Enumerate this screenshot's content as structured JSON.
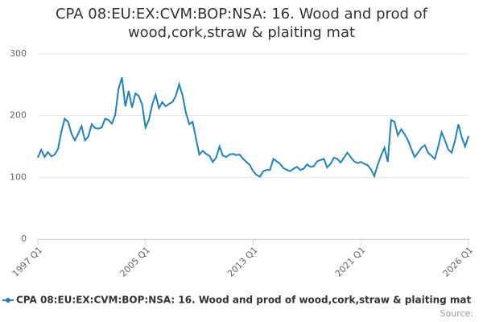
{
  "chart_data": {
    "type": "line",
    "title": "CPA 08:EU:EX:CVM:BOP:NSA: 16. Wood and prod of wood,cork,straw & plaiting mat",
    "source": "Source:",
    "categories": [
      "1997 Q1",
      null,
      null,
      null,
      null,
      null,
      null,
      null,
      null,
      null,
      null,
      null,
      null,
      null,
      null,
      null,
      null,
      null,
      null,
      null,
      null,
      null,
      null,
      null,
      null,
      null,
      null,
      null,
      null,
      null,
      null,
      null,
      "2005 Q1",
      null,
      null,
      null,
      null,
      null,
      null,
      null,
      null,
      null,
      null,
      null,
      null,
      null,
      null,
      null,
      null,
      null,
      null,
      null,
      null,
      null,
      null,
      null,
      null,
      null,
      null,
      null,
      null,
      null,
      null,
      null,
      "2013 Q1",
      null,
      null,
      null,
      null,
      null,
      null,
      null,
      null,
      null,
      null,
      null,
      null,
      null,
      null,
      null,
      null,
      null,
      null,
      null,
      null,
      null,
      null,
      null,
      null,
      null,
      null,
      null,
      null,
      null,
      null,
      null,
      "2021 Q1",
      null,
      null,
      null,
      null,
      null,
      null,
      null,
      null,
      null,
      null,
      null,
      null,
      null,
      null,
      null,
      null,
      null,
      null,
      null,
      null,
      null,
      null,
      null,
      null,
      null,
      null,
      null,
      null,
      null,
      null,
      null,
      "2026 Q1"
    ],
    "series": [
      {
        "name": "CPA 08:EU:EX:CVM:BOP:NSA: 16. Wood and prod of wood,cork,straw & plaiting mat",
        "color": "#1f82c0",
        "values": [
          132,
          145,
          133,
          141,
          134,
          137,
          146,
          174,
          195,
          190,
          171,
          160,
          171,
          183,
          160,
          166,
          186,
          180,
          179,
          181,
          195,
          193,
          187,
          201,
          244,
          262,
          215,
          240,
          213,
          236,
          232,
          218,
          181,
          193,
          218,
          234,
          212,
          222,
          215,
          219,
          222,
          232,
          251,
          233,
          205,
          186,
          190,
          163,
          137,
          143,
          138,
          135,
          125,
          132,
          150,
          135,
          133,
          137,
          138,
          136,
          137,
          130,
          125,
          120,
          110,
          104,
          101,
          110,
          112,
          112,
          130,
          126,
          122,
          115,
          112,
          110,
          114,
          117,
          112,
          114,
          121,
          117,
          118,
          126,
          128,
          130,
          116,
          122,
          132,
          130,
          124,
          132,
          140,
          133,
          126,
          123,
          125,
          122,
          120,
          113,
          102,
          120,
          135,
          148,
          125,
          193,
          190,
          168,
          178,
          170,
          160,
          146,
          133,
          140,
          148,
          152,
          140,
          135,
          130,
          150,
          173,
          160,
          145,
          140,
          160,
          186,
          165,
          150,
          167
        ]
      }
    ],
    "ylim": [
      0,
      300
    ],
    "yticks": [
      0,
      100,
      200,
      300
    ],
    "grid": true
  }
}
